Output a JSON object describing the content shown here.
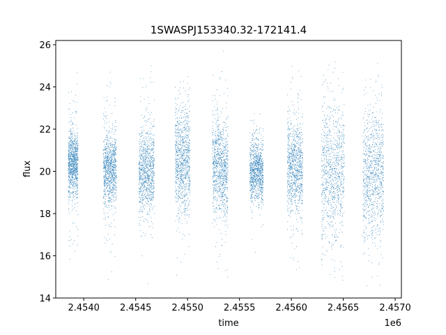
{
  "chart_data": {
    "type": "scatter",
    "title": "1SWASPJ153340.32-172141.4",
    "xlabel": "time",
    "ylabel": "flux",
    "x_offset_label": "1e6",
    "xlim": [
      2453730,
      2457060
    ],
    "ylim": [
      14.0,
      26.2
    ],
    "x_ticks": [
      2.454,
      2.4545,
      2.455,
      2.4555,
      2.456,
      2.4565,
      2.457
    ],
    "x_tick_labels": [
      "2.4540",
      "2.4545",
      "2.4550",
      "2.4555",
      "2.4560",
      "2.4565",
      "2.4570"
    ],
    "y_ticks": [
      14,
      16,
      18,
      20,
      22,
      24,
      26
    ],
    "y_tick_labels": [
      "14",
      "16",
      "18",
      "20",
      "22",
      "24",
      "26"
    ],
    "grid": false,
    "marker_color": "#1f77b4",
    "series": [
      {
        "seasons": [
          {
            "x": [
              2453850,
              2453945
            ],
            "center": 20.4,
            "core": 0.9,
            "min": 14.9,
            "max": 25.2
          },
          {
            "x": [
              2454190,
              2454315
            ],
            "center": 20.1,
            "core": 1.0,
            "min": 14.7,
            "max": 24.8
          },
          {
            "x": [
              2454530,
              2454680
            ],
            "center": 20.0,
            "core": 1.2,
            "min": 14.6,
            "max": 25.3
          },
          {
            "x": [
              2454880,
              2455025
            ],
            "center": 20.6,
            "core": 1.6,
            "min": 14.6,
            "max": 24.7
          },
          {
            "x": [
              2455240,
              2455390
            ],
            "center": 20.2,
            "core": 1.4,
            "min": 14.8,
            "max": 25.8
          },
          {
            "x": [
              2455600,
              2455730
            ],
            "center": 20.0,
            "core": 0.9,
            "min": 16.0,
            "max": 22.9
          },
          {
            "x": [
              2455960,
              2456110
            ],
            "center": 20.1,
            "core": 1.3,
            "min": 14.6,
            "max": 25.3
          },
          {
            "x": [
              2456290,
              2456510
            ],
            "center": 20.0,
            "core": 2.0,
            "min": 14.7,
            "max": 25.8
          },
          {
            "x": [
              2456690,
              2456890
            ],
            "center": 20.0,
            "core": 1.9,
            "min": 14.5,
            "max": 25.7
          }
        ]
      }
    ]
  }
}
